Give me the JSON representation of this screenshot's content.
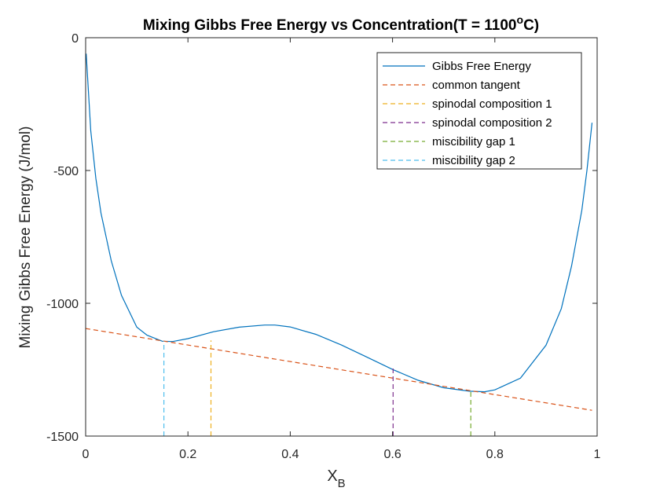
{
  "chart_data": {
    "type": "line",
    "title": "Mixing Gibbs Free Energy vs Concentration(T = 1100",
    "title_sup": "o",
    "title_end": "C)",
    "xlabel": "X",
    "xlabel_sub": "B",
    "ylabel": "Mixing Gibbs Free Energy (J/mol)",
    "xlim": [
      0,
      1
    ],
    "ylim": [
      -1500,
      0
    ],
    "xticks": [
      0,
      0.2,
      0.4,
      0.6,
      0.8,
      1
    ],
    "xtick_labels": [
      "0",
      "0.2",
      "0.4",
      "0.6",
      "0.8",
      "1"
    ],
    "yticks": [
      0,
      -500,
      -1000,
      -1500
    ],
    "ytick_labels": [
      "0",
      "-500",
      "-1000",
      "-1500"
    ],
    "grid": false,
    "legend_position": "top-right",
    "series": [
      {
        "name": "Gibbs Free Energy",
        "style": "solid",
        "color": "#0072BD",
        "x": [
          0.001,
          0.01,
          0.02,
          0.03,
          0.05,
          0.07,
          0.1,
          0.12,
          0.15,
          0.17,
          0.2,
          0.25,
          0.3,
          0.35,
          0.37,
          0.4,
          0.45,
          0.5,
          0.55,
          0.6,
          0.65,
          0.7,
          0.75,
          0.78,
          0.8,
          0.85,
          0.9,
          0.93,
          0.95,
          0.97,
          0.98,
          0.99
        ],
        "y": [
          -60,
          -350,
          -530,
          -660,
          -840,
          -970,
          -1090,
          -1120,
          -1143,
          -1144,
          -1133,
          -1107,
          -1090,
          -1082,
          -1082,
          -1089,
          -1117,
          -1157,
          -1203,
          -1249,
          -1290,
          -1318,
          -1331,
          -1333,
          -1326,
          -1282,
          -1158,
          -1020,
          -860,
          -650,
          -500,
          -320
        ]
      },
      {
        "name": "common tangent",
        "style": "dashed",
        "color": "#D95319",
        "x": [
          0,
          0.99
        ],
        "y": [
          -1095,
          -1403
        ]
      },
      {
        "name": "spinodal composition 1",
        "style": "dashed",
        "color": "#EDB120",
        "x": [
          0.245,
          0.245
        ],
        "y": [
          -1500,
          -1140
        ]
      },
      {
        "name": "spinodal composition 2",
        "style": "dashed",
        "color": "#7E2F8E",
        "x": [
          0.601,
          0.601
        ],
        "y": [
          -1500,
          -1240
        ]
      },
      {
        "name": "miscibility gap 1",
        "style": "dashed",
        "color": "#77AC30",
        "x": [
          0.753,
          0.753
        ],
        "y": [
          -1500,
          -1330
        ]
      },
      {
        "name": "miscibility gap 2",
        "style": "dashed",
        "color": "#4DBEEE",
        "x": [
          0.153,
          0.153
        ],
        "y": [
          -1500,
          -1143
        ]
      }
    ]
  }
}
